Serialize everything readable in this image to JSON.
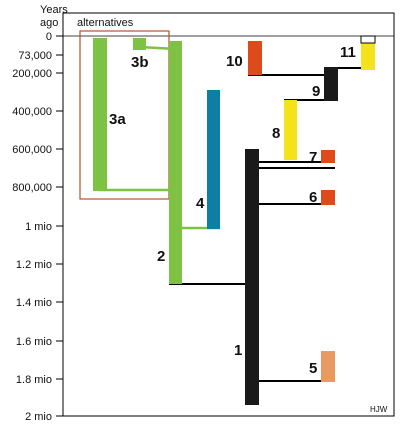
{
  "axis": {
    "title_line1": "Years",
    "title_line2": "ago",
    "ticks": [
      {
        "value": 0,
        "label": "0"
      },
      {
        "value": 73000,
        "label": "73,000"
      },
      {
        "value": 200000,
        "label": "200,000"
      },
      {
        "value": 400000,
        "label": "400,000"
      },
      {
        "value": 600000,
        "label": "600,000"
      },
      {
        "value": 800000,
        "label": "800,000"
      },
      {
        "value": 1000000,
        "label": "1 mio"
      },
      {
        "value": 1200000,
        "label": "1.2 mio"
      },
      {
        "value": 1400000,
        "label": "1.4 mio"
      },
      {
        "value": 1600000,
        "label": "1.6 mio"
      },
      {
        "value": 1800000,
        "label": "1.8 mio"
      },
      {
        "value": 2000000,
        "label": "2 mio"
      }
    ]
  },
  "alternatives_label": "alternatives",
  "credit": "HJW",
  "colors": {
    "black": "#1a1a1a",
    "green": "#7dc243",
    "blue": "#0d7fa5",
    "yellow": "#f5e31a",
    "red": "#dd4a1b",
    "salmon": "#e99a63",
    "alt_box": "#b4532a",
    "line": "#000000"
  },
  "branch_labels": [
    "1",
    "2",
    "3a",
    "3b",
    "4",
    "5",
    "6",
    "7",
    "8",
    "9",
    "10",
    "11"
  ]
}
